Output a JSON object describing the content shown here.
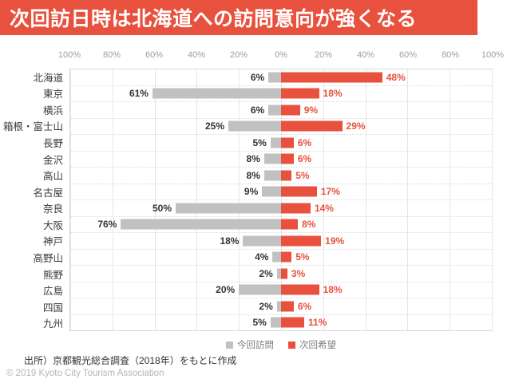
{
  "title": "次回訪日時は北海道への訪問意向が強くなる",
  "colors": {
    "banner_red": "#E8513D",
    "bar_gray": "#C1C1C1",
    "bar_red": "#E8513D",
    "value_gray_text": "#333333",
    "value_red_text": "#E8513D",
    "axis_text": "#9e9e9e"
  },
  "chart_data": {
    "type": "bar",
    "orientation": "diverging-horizontal",
    "title": "次回訪日時は北海道への訪問意向が強くなる",
    "categories": [
      "北海道",
      "東京",
      "横浜",
      "箱根・富士山",
      "長野",
      "金沢",
      "高山",
      "名古屋",
      "奈良",
      "大阪",
      "神戸",
      "高野山",
      "熊野",
      "広島",
      "四国",
      "九州"
    ],
    "series": [
      {
        "name": "今回訪問",
        "side": "left",
        "color": "#C1C1C1",
        "values": [
          6,
          61,
          6,
          25,
          5,
          8,
          8,
          9,
          50,
          76,
          18,
          4,
          2,
          20,
          2,
          5
        ]
      },
      {
        "name": "次回希望",
        "side": "right",
        "color": "#E8513D",
        "values": [
          48,
          18,
          9,
          29,
          6,
          6,
          5,
          17,
          14,
          8,
          19,
          5,
          3,
          18,
          6,
          11
        ]
      }
    ],
    "axis_ticks": [
      "100%",
      "80%",
      "60%",
      "40%",
      "20%",
      "0%",
      "20%",
      "40%",
      "60%",
      "80%",
      "100%"
    ],
    "xlim": [
      -100,
      100
    ],
    "grid": true,
    "legend_position": "bottom",
    "value_suffix": "%"
  },
  "legend": [
    {
      "label": "今回訪問",
      "color": "#C1C1C1"
    },
    {
      "label": "次回希望",
      "color": "#E8513D"
    }
  ],
  "footer": {
    "source": "出所）京都観光総合調査（2018年）をもとに作成",
    "copyright": "© 2019 Kyoto City Tourism Association"
  }
}
